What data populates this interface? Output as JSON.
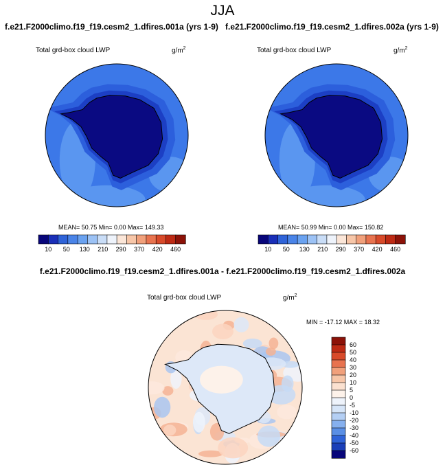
{
  "page": {
    "title": "JJA",
    "left_case": "f.e21.F2000climo.f19_f19.cesm2_1.dfires.001a (yrs 1-9)",
    "right_case": "f.e21.F2000climo.f19_f19.cesm2_1.dfires.002a (yrs 1-9)",
    "diff_title": "f.e21.F2000climo.f19_f19.cesm2_1.dfires.001a - f.e21.F2000climo.f19_f19.cesm2_1.dfires.002a"
  },
  "panels": {
    "left": {
      "label": "Total grd-box cloud LWP",
      "units": "g/m",
      "units_exp": "2",
      "stats": "MEAN=  50.75   Min=   0.00   Max= 149.33"
    },
    "right": {
      "label": "Total grd-box cloud LWP",
      "units": "g/m",
      "units_exp": "2",
      "stats": "MEAN=  50.99   Min=   0.00   Max= 150.82"
    },
    "diff": {
      "label": "Total grd-box cloud LWP",
      "units": "g/m",
      "units_exp": "2",
      "stats": "MIN = -17.12 MAX =  18.32"
    }
  },
  "chart_data": [
    {
      "type": "heatmap",
      "subtitle": "f.e21.F2000climo.f19_f19.cesm2_1.dfires.001a (yrs 1-9)",
      "title": "Total grd-box cloud LWP",
      "units": "g/m2",
      "projection": "south polar stereographic",
      "mean": 50.75,
      "min": 0.0,
      "max": 149.33,
      "colorbar_labels": [
        "10",
        "50",
        "130",
        "210",
        "290",
        "370",
        "420",
        "460"
      ],
      "colorbar_colors": [
        "#08067a",
        "#1a2fb8",
        "#2f63d8",
        "#4a84e8",
        "#6aa2f0",
        "#9cc2f5",
        "#c9ddf7",
        "#eef3fb",
        "#fbe6d8",
        "#f7c6a8",
        "#f1a07b",
        "#e8734f",
        "#d84a2a",
        "#bd2a14",
        "#8c1208"
      ],
      "colorbar_orientation": "horizontal"
    },
    {
      "type": "heatmap",
      "subtitle": "f.e21.F2000climo.f19_f19.cesm2_1.dfires.002a (yrs 1-9)",
      "title": "Total grd-box cloud LWP",
      "units": "g/m2",
      "projection": "south polar stereographic",
      "mean": 50.99,
      "min": 0.0,
      "max": 150.82,
      "colorbar_labels": [
        "10",
        "50",
        "130",
        "210",
        "290",
        "370",
        "420",
        "460"
      ],
      "colorbar_colors": [
        "#08067a",
        "#1a2fb8",
        "#2f63d8",
        "#4a84e8",
        "#6aa2f0",
        "#9cc2f5",
        "#c9ddf7",
        "#eef3fb",
        "#fbe6d8",
        "#f7c6a8",
        "#f1a07b",
        "#e8734f",
        "#d84a2a",
        "#bd2a14",
        "#8c1208"
      ],
      "colorbar_orientation": "horizontal"
    },
    {
      "type": "heatmap",
      "subtitle": "f.e21.F2000climo.f19_f19.cesm2_1.dfires.001a - f.e21.F2000climo.f19_f19.cesm2_1.dfires.002a",
      "title": "Total grd-box cloud LWP",
      "units": "g/m2",
      "projection": "south polar stereographic",
      "min": -17.12,
      "max": 18.32,
      "colorbar_labels": [
        "60",
        "50",
        "40",
        "30",
        "20",
        "10",
        "5",
        "0",
        "-5",
        "-10",
        "-20",
        "-30",
        "-40",
        "-50",
        "-60"
      ],
      "colorbar_colors": [
        "#8c1208",
        "#bd2a14",
        "#d84a2a",
        "#e8734f",
        "#f1a07b",
        "#f7c6a8",
        "#fbe1d0",
        "#fdf2ea",
        "#eef3fb",
        "#d6e5f8",
        "#b4cff4",
        "#86b0ee",
        "#5a8fe5",
        "#2f63d8",
        "#1a3fb8",
        "#08067a"
      ],
      "colorbar_orientation": "vertical"
    }
  ]
}
